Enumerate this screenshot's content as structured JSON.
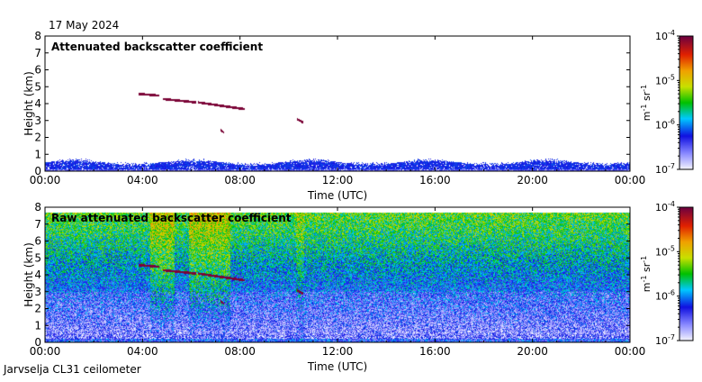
{
  "header": {
    "date": "17 May 2024"
  },
  "footer": {
    "site": "Jarvselja CL31 ceilometer"
  },
  "colorbar": {
    "ticks": [
      "10",
      "10",
      "10",
      "10"
    ],
    "exponents": [
      "-4",
      "-5",
      "-6",
      "-7"
    ],
    "unit_m": "m",
    "unit_m_exp": "-1",
    "unit_sr": " sr",
    "unit_sr_exp": "-1"
  },
  "chart_data": [
    {
      "type": "heatmap",
      "title": "Attenuated backscatter coefficient",
      "xlabel": "Time (UTC)",
      "ylabel": "Height (km)",
      "xlim": [
        "00:00",
        "24:00"
      ],
      "ylim": [
        0,
        8
      ],
      "xticks": [
        "00:00",
        "04:00",
        "08:00",
        "12:00",
        "16:00",
        "20:00",
        "00:00"
      ],
      "yticks": [
        "0",
        "1",
        "2",
        "3",
        "4",
        "5",
        "6",
        "7",
        "8"
      ],
      "color_scale": "log",
      "color_range": [
        "1e-7",
        "1e-4"
      ],
      "features": [
        {
          "name": "boundary layer",
          "from": "00:00",
          "to": "24:00",
          "height_km": [
            0.0,
            0.8
          ]
        },
        {
          "name": "cloud layer",
          "from": "03:50",
          "to": "04:40",
          "height_km": [
            4.5,
            4.6
          ]
        },
        {
          "name": "cloud layer",
          "from": "04:50",
          "to": "06:10",
          "height_km": [
            4.1,
            4.3
          ]
        },
        {
          "name": "cloud layer",
          "from": "06:15",
          "to": "08:10",
          "height_km": [
            3.7,
            4.1
          ]
        },
        {
          "name": "cloud fragment",
          "from": "10:20",
          "to": "10:35",
          "height_km": [
            2.9,
            3.1
          ]
        },
        {
          "name": "cloud fragment",
          "from": "07:10",
          "to": "07:20",
          "height_km": [
            2.3,
            2.5
          ]
        }
      ]
    },
    {
      "type": "heatmap",
      "title": "Raw attenuated backscatter coefficient",
      "xlabel": "Time (UTC)",
      "ylabel": "Height (km)",
      "xlim": [
        "00:00",
        "24:00"
      ],
      "ylim": [
        0,
        8
      ],
      "xticks": [
        "00:00",
        "04:00",
        "08:00",
        "12:00",
        "16:00",
        "20:00",
        "00:00"
      ],
      "yticks": [
        "0",
        "1",
        "2",
        "3",
        "4",
        "5",
        "6",
        "7",
        "8"
      ],
      "color_scale": "log",
      "color_range": [
        "1e-7",
        "1e-4"
      ]
    }
  ]
}
